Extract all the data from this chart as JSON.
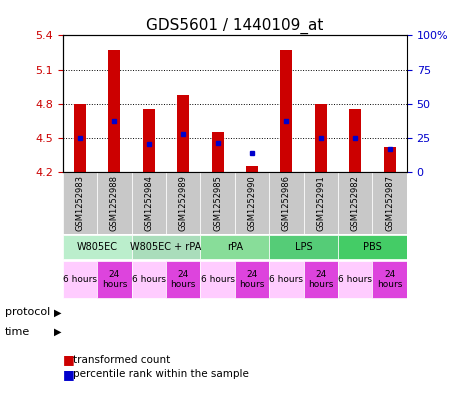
{
  "title": "GDS5601 / 1440109_at",
  "samples": [
    "GSM1252983",
    "GSM1252988",
    "GSM1252984",
    "GSM1252989",
    "GSM1252985",
    "GSM1252990",
    "GSM1252986",
    "GSM1252991",
    "GSM1252982",
    "GSM1252987"
  ],
  "red_bar_heights": [
    4.8,
    5.27,
    4.75,
    4.88,
    4.55,
    4.25,
    5.27,
    4.8,
    4.75,
    4.42
  ],
  "blue_dot_y": [
    4.5,
    4.65,
    4.45,
    4.53,
    4.455,
    4.37,
    4.65,
    4.5,
    4.5,
    4.4
  ],
  "ylim_left": [
    4.2,
    5.4
  ],
  "ylim_right": [
    0,
    100
  ],
  "yticks_left": [
    4.2,
    4.5,
    4.8,
    5.1,
    5.4
  ],
  "ytick_labels_right": [
    "0",
    "25",
    "50",
    "75",
    "100%"
  ],
  "yticks_right_vals": [
    0,
    25,
    50,
    75,
    100
  ],
  "bar_color": "#cc0000",
  "dot_color": "#0000cc",
  "bar_bottom": 4.2,
  "protocol_data": [
    {
      "label": "W805EC",
      "start": 0,
      "end": 2,
      "color": "#bbeecc"
    },
    {
      "label": "W805EC + rPA",
      "start": 2,
      "end": 4,
      "color": "#aaddbb"
    },
    {
      "label": "rPA",
      "start": 4,
      "end": 6,
      "color": "#88dd99"
    },
    {
      "label": "LPS",
      "start": 6,
      "end": 8,
      "color": "#55cc77"
    },
    {
      "label": "PBS",
      "start": 8,
      "end": 10,
      "color": "#44cc66"
    }
  ],
  "time_labels": [
    "6 hours",
    "24\nhours",
    "6 hours",
    "24\nhours",
    "6 hours",
    "24\nhours",
    "6 hours",
    "24\nhours",
    "6 hours",
    "24\nhours"
  ],
  "time_colors_bg": [
    "#ffccff",
    "#dd44dd",
    "#ffccff",
    "#dd44dd",
    "#ffccff",
    "#dd44dd",
    "#ffccff",
    "#dd44dd",
    "#ffccff",
    "#dd44dd"
  ],
  "label_color_left": "#cc0000",
  "label_color_right": "#0000cc",
  "title_fontsize": 11,
  "sample_bg_color": "#c8c8c8",
  "grid_color": "#000000"
}
